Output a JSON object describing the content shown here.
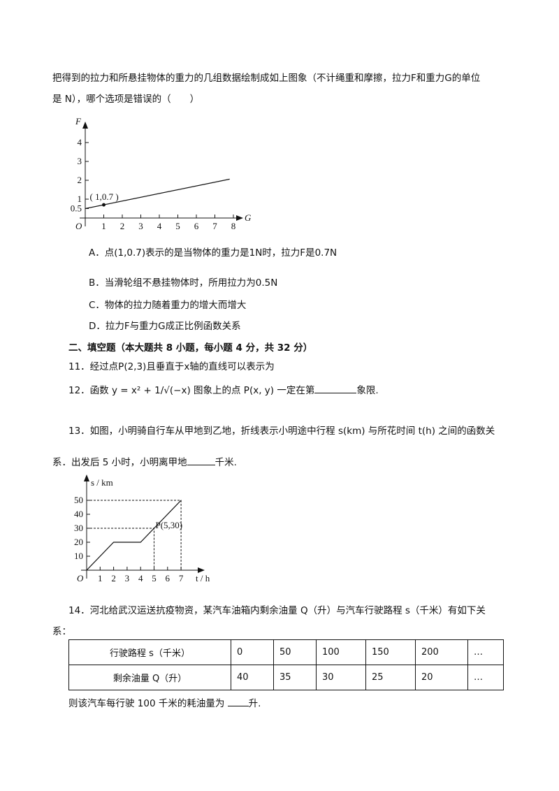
{
  "q10": {
    "line1": "把得到的拉力和所悬挂物体的重力的几组数据绘制成如上图象（不计绳重和摩擦，拉力F和重力G的单位",
    "line2": "是 N），哪个选项是错误的（　　）",
    "options": [
      "A．点(1,0.7)表示的是当物体的重力是1N时，拉力F是0.7N",
      "B．当滑轮组不悬挂物体时，所用拉力为0.5N",
      "C．物体的拉力随着重力的增大而增大",
      "D．拉力F与重力G成正比例函数关系"
    ]
  },
  "section": "二、填空题（本大题共 8 小题，每小题 4 分，共 32 分）",
  "q11": "11．经过点P(2,3)且垂直于x轴的直线可以表示为",
  "q12": {
    "pre": "12．函数 y = x² + 1/√(−x) 图象上的点 P(x, y) 一定在第",
    "post": "象限."
  },
  "q13": {
    "line1": "13．如图，小明骑自行车从甲地到乙地，折线表示小明途中行程 s(km) 与所花时间 t(h) 之间的函数关",
    "line2_pre": "系．出发后 5 小时，小明离甲地",
    "line2_post": "千米."
  },
  "q14": {
    "line1": "14．河北给武汉运送抗疫物资，某汽车油箱内剩余油量 Q（升）与汽车行驶路程 s（千米）有如下关",
    "line2": "系：",
    "footer_pre": "则该汽车每行驶 100 千米的耗油量为 ",
    "footer_post": "升.",
    "table": {
      "rows": [
        {
          "header": "行驶路程 s（千米）",
          "cells": [
            "0",
            "50",
            "100",
            "150",
            "200",
            "…"
          ]
        },
        {
          "header": "剩余油量 Q（升）",
          "cells": [
            "40",
            "35",
            "30",
            "25",
            "20",
            "…"
          ]
        }
      ]
    }
  },
  "chart_data": [
    {
      "type": "line",
      "xlabel": "G",
      "ylabel": "F",
      "origin_label": "O",
      "x_ticks": [
        "1",
        "2",
        "3",
        "4",
        "5",
        "6",
        "7",
        "8"
      ],
      "y_ticks": [
        "0.5",
        "1",
        "2",
        "3",
        "4"
      ],
      "xlim": [
        0,
        8
      ],
      "ylim": [
        0,
        4.5
      ],
      "series": [
        {
          "x": [
            0,
            7.8
          ],
          "y": [
            0.5,
            2.06
          ]
        }
      ],
      "points": [
        {
          "x": 1,
          "y": 0.7,
          "label": "( 1,0.7 )"
        }
      ]
    },
    {
      "type": "line",
      "xlabel": "t / h",
      "ylabel": "s / km",
      "origin_label": "O",
      "x_ticks": [
        "1",
        "2",
        "3",
        "4",
        "5",
        "6",
        "7"
      ],
      "y_ticks": [
        "10",
        "20",
        "30",
        "40",
        "50"
      ],
      "xlim": [
        0,
        7
      ],
      "ylim": [
        0,
        50
      ],
      "series": [
        {
          "x": [
            0,
            2,
            4,
            7
          ],
          "y": [
            0,
            20,
            20,
            50
          ]
        }
      ],
      "points": [
        {
          "x": 5,
          "y": 30,
          "label": "P(5,30)"
        }
      ],
      "guides": [
        {
          "x": 5,
          "y": 30
        },
        {
          "x": 7,
          "y": 50
        }
      ]
    }
  ]
}
